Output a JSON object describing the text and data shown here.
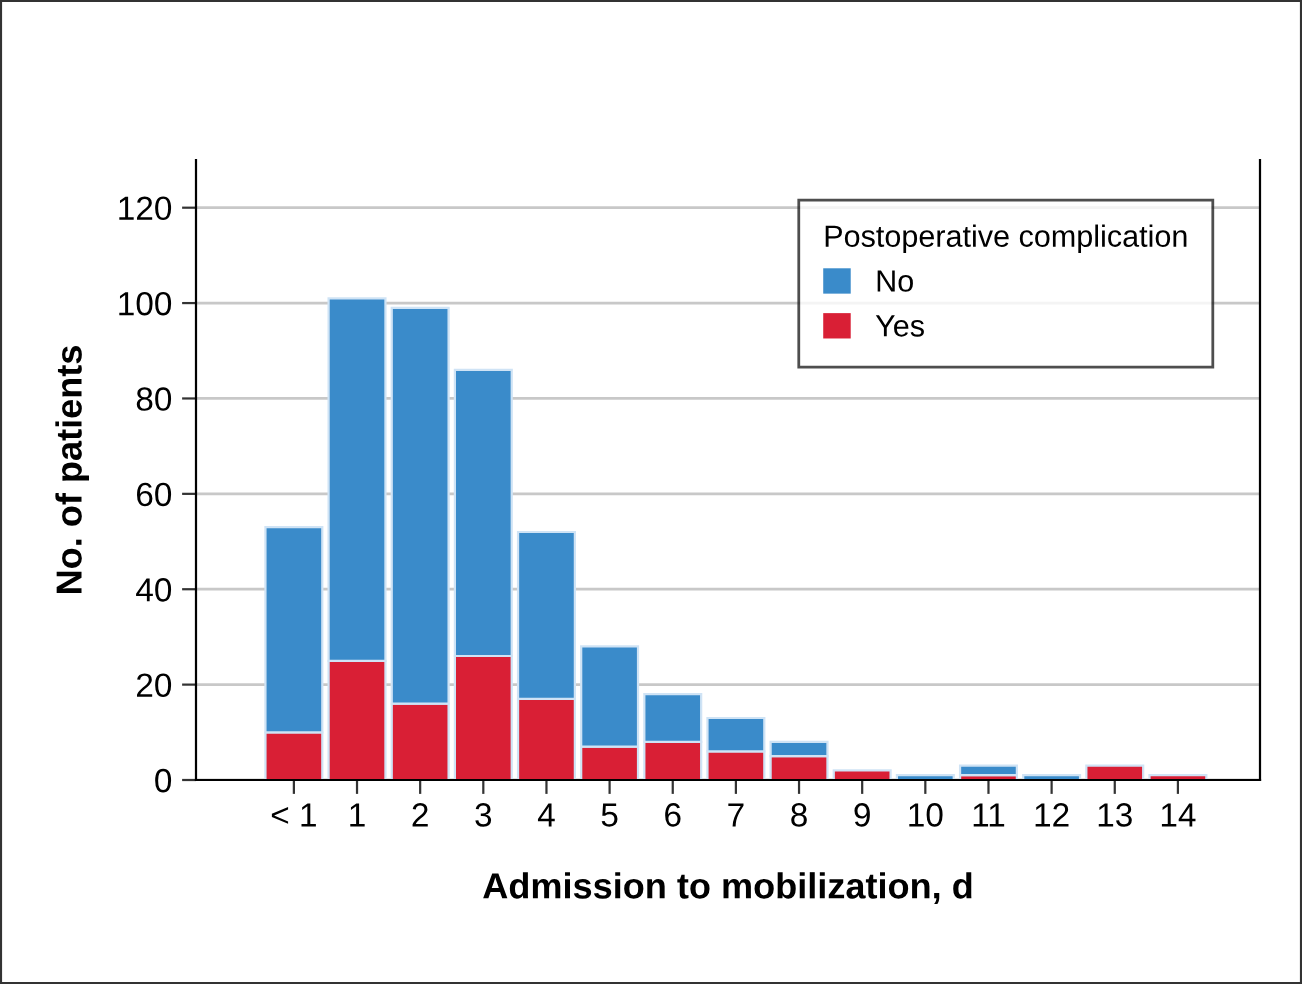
{
  "chart_data": {
    "type": "bar",
    "stacked": true,
    "xlabel": "Admission to mobilization, d",
    "ylabel": "No. of patients",
    "legend_title": "Postoperative complication",
    "categories": [
      "< 1",
      "1",
      "2",
      "3",
      "4",
      "5",
      "6",
      "7",
      "8",
      "9",
      "10",
      "11",
      "12",
      "13",
      "14"
    ],
    "series": [
      {
        "name": "Yes",
        "color": "#d91f35",
        "values": [
          10,
          25,
          16,
          26,
          17,
          7,
          8,
          6,
          5,
          2,
          0,
          1,
          0,
          3,
          1
        ]
      },
      {
        "name": "No",
        "color": "#3a8bca",
        "values": [
          43,
          76,
          83,
          60,
          35,
          21,
          10,
          7,
          3,
          0,
          1,
          2,
          1,
          0,
          0
        ]
      }
    ],
    "ylim": [
      0,
      130
    ],
    "yticks": [
      0,
      20,
      40,
      60,
      80,
      100,
      120
    ],
    "grid": "y",
    "legend": "top right"
  }
}
